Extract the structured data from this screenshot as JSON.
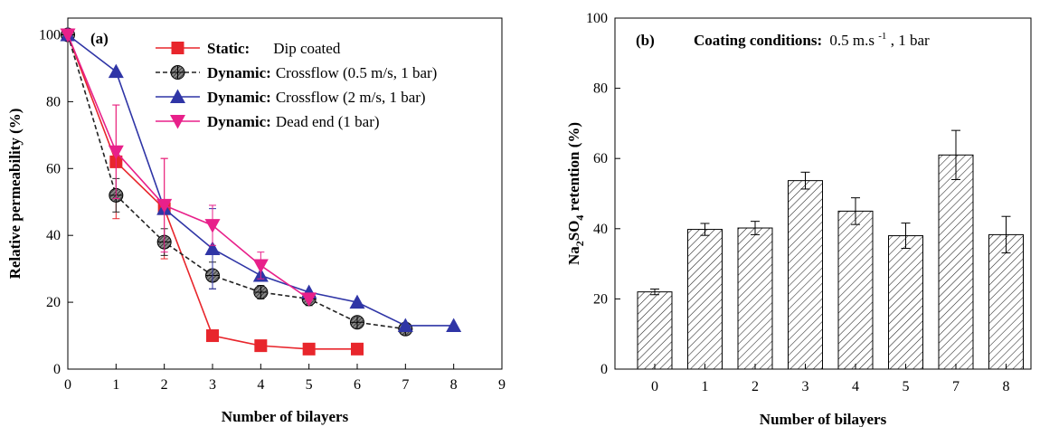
{
  "chart_data": [
    {
      "type": "line",
      "panel_label": "(a)",
      "xlabel": "Number of bilayers",
      "ylabel": "Relative permeability (%)",
      "xlim": [
        0,
        9
      ],
      "ylim": [
        0,
        105
      ],
      "xticks": [
        0,
        1,
        2,
        3,
        4,
        5,
        6,
        7,
        8,
        9
      ],
      "yticks": [
        0,
        20,
        40,
        60,
        80,
        100
      ],
      "grid": false,
      "legend_position": "top-right",
      "series": [
        {
          "name_bold": "Static:",
          "name_rest": "Dip coated",
          "marker": "square",
          "color": "#e8262c",
          "dash": "",
          "x": [
            0,
            1,
            2,
            3,
            4,
            5,
            6
          ],
          "y": [
            100,
            62,
            48,
            10,
            7,
            6,
            6
          ],
          "err": [
            0,
            17,
            15,
            0,
            0,
            0,
            0
          ]
        },
        {
          "name_bold": "Dynamic:",
          "name_rest": "Crossflow (0.5 m/s, 1 bar)",
          "marker": "hatched-circle",
          "color": "#222222",
          "dash": "5,3",
          "x": [
            0,
            1,
            2,
            3,
            4,
            5,
            6,
            7
          ],
          "y": [
            100,
            52,
            38,
            28,
            23,
            21,
            14,
            12
          ],
          "err": [
            0,
            5,
            4,
            4,
            2,
            2,
            1,
            1
          ]
        },
        {
          "name_bold": "Dynamic:",
          "name_rest": "Crossflow (2 m/s, 1 bar)",
          "marker": "triangle-up",
          "color": "#2f35a6",
          "dash": "",
          "x": [
            0,
            1,
            2,
            3,
            4,
            5,
            6,
            7,
            8
          ],
          "y": [
            100,
            89,
            48,
            36,
            28,
            23,
            20,
            13,
            13
          ],
          "err": [
            0,
            0,
            0,
            12,
            0,
            0,
            0,
            0,
            0
          ]
        },
        {
          "name_bold": "Dynamic:",
          "name_rest": "Dead end (1 bar)",
          "marker": "triangle-down",
          "color": "#e8208a",
          "dash": "",
          "x": [
            0,
            1,
            2,
            3,
            4,
            5
          ],
          "y": [
            100,
            65,
            49,
            43,
            31,
            21
          ],
          "err": [
            0,
            14,
            14,
            6,
            4,
            0
          ]
        }
      ]
    },
    {
      "type": "bar",
      "panel_label": "(b)",
      "annotation_bold": "Coating conditions:",
      "annotation_rest": "0.5 m.s",
      "annotation_sup": "-1",
      "annotation_tail": ", 1 bar",
      "xlabel": "Number of bilayers",
      "ylabel_pre": "Na",
      "ylabel_sub1": "2",
      "ylabel_mid": "SO",
      "ylabel_sub2": "4",
      "ylabel_post": " retention (%)",
      "ylim": [
        0,
        100
      ],
      "yticks": [
        0,
        20,
        40,
        60,
        80,
        100
      ],
      "categories": [
        "0",
        "1",
        "2",
        "3",
        "4",
        "5",
        "7",
        "8"
      ],
      "values": [
        22,
        39.8,
        40.2,
        53.7,
        45,
        38,
        61,
        38.3
      ],
      "errors": [
        0.8,
        1.7,
        1.9,
        2.4,
        3.8,
        3.6,
        7,
        5.2
      ],
      "bar_fill": "hatched"
    }
  ]
}
